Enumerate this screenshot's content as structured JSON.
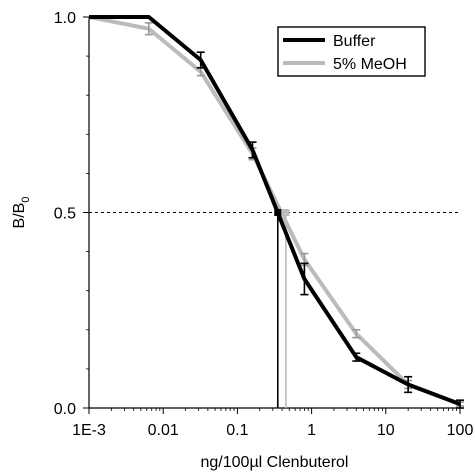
{
  "chart_data": {
    "type": "line",
    "xlabel": "ng/100µl Clenbuterol",
    "ylabel_main": "B/B",
    "ylabel_sub": "0",
    "x_scale": "log",
    "xlim": [
      0.001,
      100
    ],
    "ylim": [
      0.0,
      1.0
    ],
    "x_ticks": [
      {
        "value": 0.001,
        "label": "1E-3"
      },
      {
        "value": 0.01,
        "label": "0.01"
      },
      {
        "value": 0.1,
        "label": "0.1"
      },
      {
        "value": 1,
        "label": "1"
      },
      {
        "value": 10,
        "label": "10"
      },
      {
        "value": 100,
        "label": "100"
      }
    ],
    "y_ticks": [
      {
        "value": 0.0,
        "label": "0.0"
      },
      {
        "value": 0.5,
        "label": "0.5"
      },
      {
        "value": 1.0,
        "label": "1.0"
      }
    ],
    "legend_position": "top-right",
    "reference_line": {
      "y": 0.5,
      "style": "dashed"
    },
    "series": [
      {
        "name": "Buffer",
        "color": "#000000",
        "x": [
          0.001,
          0.0064,
          0.032,
          0.16,
          0.8,
          4.0,
          20.0,
          100.0
        ],
        "y": [
          1.0,
          1.0,
          0.89,
          0.66,
          0.33,
          0.13,
          0.06,
          0.01
        ],
        "err": [
          0.0,
          0.0,
          0.02,
          0.02,
          0.04,
          0.01,
          0.02,
          0.01
        ],
        "ic50": 0.35
      },
      {
        "name": "5% MeOH",
        "color": "#bbbbbb",
        "x": [
          0.001,
          0.0064,
          0.032,
          0.16,
          0.8,
          4.0,
          20.0,
          100.0
        ],
        "y": [
          1.0,
          0.97,
          0.86,
          0.65,
          0.38,
          0.19,
          0.06,
          0.01
        ],
        "err": [
          0.0,
          0.015,
          0.01,
          0.015,
          0.015,
          0.01,
          0.01,
          0.005
        ],
        "ic50": 0.45
      }
    ]
  }
}
